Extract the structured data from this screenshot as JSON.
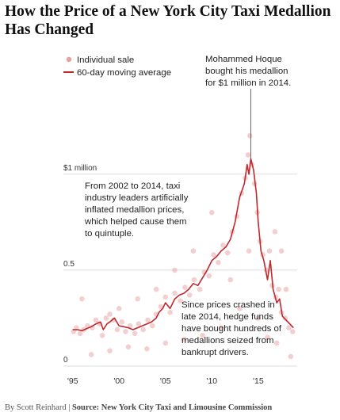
{
  "title": "How the Price of a New York City Taxi Medallion Has Changed",
  "credit": {
    "byline": "By Scott Reinhard",
    "separator": "|",
    "source": "Source: New York City Taxi and Limousine Commission"
  },
  "chart_data": {
    "type": "scatter",
    "xlim": [
      1994,
      2019.2
    ],
    "ylim": [
      0,
      1.35
    ],
    "x_ticks": [
      {
        "value": 1995,
        "label": "'95"
      },
      {
        "value": 2000,
        "label": "'00"
      },
      {
        "value": 2005,
        "label": "'05"
      },
      {
        "value": 2010,
        "label": "'10"
      },
      {
        "value": 2015,
        "label": "'15"
      }
    ],
    "y_ticks": [
      {
        "value": 0,
        "label": "0"
      },
      {
        "value": 0.5,
        "label": "0.5"
      },
      {
        "value": 1.0,
        "label": "$1 million"
      }
    ],
    "grid": true,
    "legend": [
      {
        "label": "Individual sale",
        "marker": "dot",
        "color": "#e8a0a0"
      },
      {
        "label": "60-day moving average",
        "marker": "line",
        "color": "#c0282d"
      }
    ],
    "series": [
      {
        "name": "60-day moving average",
        "color": "#c0282d",
        "points": [
          [
            1995.0,
            0.19
          ],
          [
            1995.5,
            0.19
          ],
          [
            1996.0,
            0.185
          ],
          [
            1996.5,
            0.195
          ],
          [
            1997.0,
            0.205
          ],
          [
            1997.5,
            0.22
          ],
          [
            1998.0,
            0.23
          ],
          [
            1998.3,
            0.19
          ],
          [
            1998.7,
            0.22
          ],
          [
            1999.0,
            0.23
          ],
          [
            1999.5,
            0.25
          ],
          [
            2000.0,
            0.21
          ],
          [
            2000.5,
            0.205
          ],
          [
            2001.0,
            0.2
          ],
          [
            2001.5,
            0.19
          ],
          [
            2002.0,
            0.2
          ],
          [
            2002.5,
            0.21
          ],
          [
            2003.0,
            0.22
          ],
          [
            2003.5,
            0.23
          ],
          [
            2004.0,
            0.25
          ],
          [
            2004.3,
            0.28
          ],
          [
            2004.7,
            0.3
          ],
          [
            2005.0,
            0.33
          ],
          [
            2005.5,
            0.3
          ],
          [
            2006.0,
            0.35
          ],
          [
            2006.5,
            0.37
          ],
          [
            2007.0,
            0.38
          ],
          [
            2007.5,
            0.4
          ],
          [
            2008.0,
            0.43
          ],
          [
            2008.5,
            0.42
          ],
          [
            2009.0,
            0.46
          ],
          [
            2009.5,
            0.5
          ],
          [
            2010.0,
            0.55
          ],
          [
            2010.5,
            0.57
          ],
          [
            2011.0,
            0.6
          ],
          [
            2011.5,
            0.62
          ],
          [
            2012.0,
            0.66
          ],
          [
            2012.5,
            0.75
          ],
          [
            2013.0,
            0.88
          ],
          [
            2013.5,
            0.95
          ],
          [
            2013.8,
            1.05
          ],
          [
            2014.0,
            1.0
          ],
          [
            2014.2,
            1.08
          ],
          [
            2014.5,
            1.02
          ],
          [
            2014.8,
            0.9
          ],
          [
            2015.0,
            0.75
          ],
          [
            2015.3,
            0.6
          ],
          [
            2015.6,
            0.55
          ],
          [
            2016.0,
            0.45
          ],
          [
            2016.3,
            0.55
          ],
          [
            2016.6,
            0.4
          ],
          [
            2017.0,
            0.33
          ],
          [
            2017.3,
            0.35
          ],
          [
            2017.6,
            0.26
          ],
          [
            2018.0,
            0.24
          ],
          [
            2018.4,
            0.22
          ],
          [
            2018.8,
            0.2
          ]
        ]
      },
      {
        "name": "Individual sale",
        "color": "#e8a0a0",
        "points": [
          [
            1995.1,
            0.18
          ],
          [
            1995.4,
            0.2
          ],
          [
            1995.8,
            0.17
          ],
          [
            1996.2,
            0.19
          ],
          [
            1996.6,
            0.21
          ],
          [
            1997.1,
            0.2
          ],
          [
            1997.5,
            0.24
          ],
          [
            1997.9,
            0.22
          ],
          [
            1998.2,
            0.16
          ],
          [
            1998.6,
            0.25
          ],
          [
            1999.0,
            0.27
          ],
          [
            1999.4,
            0.24
          ],
          [
            1999.8,
            0.19
          ],
          [
            2000.3,
            0.23
          ],
          [
            2000.7,
            0.18
          ],
          [
            2001.2,
            0.21
          ],
          [
            2001.7,
            0.17
          ],
          [
            2002.1,
            0.22
          ],
          [
            2002.6,
            0.19
          ],
          [
            2003.1,
            0.24
          ],
          [
            2003.6,
            0.21
          ],
          [
            2004.0,
            0.27
          ],
          [
            2004.5,
            0.31
          ],
          [
            2005.0,
            0.36
          ],
          [
            2005.5,
            0.28
          ],
          [
            2006.0,
            0.38
          ],
          [
            2006.6,
            0.34
          ],
          [
            2007.1,
            0.41
          ],
          [
            2007.6,
            0.37
          ],
          [
            2008.1,
            0.45
          ],
          [
            2008.7,
            0.4
          ],
          [
            2009.2,
            0.49
          ],
          [
            2009.7,
            0.47
          ],
          [
            2010.2,
            0.58
          ],
          [
            2010.7,
            0.54
          ],
          [
            2011.2,
            0.63
          ],
          [
            2011.7,
            0.59
          ],
          [
            2012.2,
            0.7
          ],
          [
            2012.7,
            0.78
          ],
          [
            2013.2,
            0.9
          ],
          [
            2013.6,
            0.98
          ],
          [
            2013.9,
            1.1
          ],
          [
            2014.1,
            1.2
          ],
          [
            2014.3,
            1.05
          ],
          [
            2014.6,
            0.95
          ],
          [
            2014.9,
            0.8
          ],
          [
            2015.2,
            0.65
          ],
          [
            2015.5,
            0.58
          ],
          [
            2015.9,
            0.5
          ],
          [
            2016.2,
            0.6
          ],
          [
            2016.5,
            0.42
          ],
          [
            2016.9,
            0.36
          ],
          [
            2017.2,
            0.4
          ],
          [
            2017.5,
            0.28
          ],
          [
            2017.9,
            0.25
          ],
          [
            2018.3,
            0.2
          ],
          [
            2018.7,
            0.18
          ],
          [
            1997.0,
            0.06
          ],
          [
            1999.0,
            0.08
          ],
          [
            2001.0,
            0.1
          ],
          [
            2003.0,
            0.09
          ],
          [
            2005.0,
            0.12
          ],
          [
            2007.0,
            0.14
          ],
          [
            2009.0,
            0.16
          ],
          [
            2011.0,
            0.2
          ],
          [
            2013.0,
            0.3
          ],
          [
            2015.0,
            0.25
          ],
          [
            2017.0,
            0.12
          ],
          [
            2018.5,
            0.05
          ],
          [
            2016.0,
            0.15
          ],
          [
            2012.0,
            0.45
          ],
          [
            2014.0,
            0.6
          ],
          [
            2010.0,
            0.8
          ],
          [
            2008.0,
            0.6
          ],
          [
            2006.0,
            0.5
          ],
          [
            2004.0,
            0.4
          ],
          [
            2002.0,
            0.35
          ],
          [
            2000.0,
            0.3
          ],
          [
            1996.0,
            0.35
          ],
          [
            2018.0,
            0.4
          ],
          [
            2017.5,
            0.6
          ],
          [
            2016.8,
            0.7
          ]
        ]
      }
    ],
    "annotations": [
      {
        "lines": [
          "Mohammed Hoque",
          "bought his medallion",
          "for $1 million in 2014."
        ]
      },
      {
        "lines": [
          "From 2002 to 2014, taxi",
          "industry leaders artificially",
          "inflated medallion prices,",
          "which helped cause them",
          "to quintuple."
        ]
      },
      {
        "lines": [
          "Since prices crashed in",
          "late 2014, hedge funds",
          "have bought hundreds of",
          "medallions seized from",
          "bankrupt drivers."
        ]
      }
    ]
  }
}
